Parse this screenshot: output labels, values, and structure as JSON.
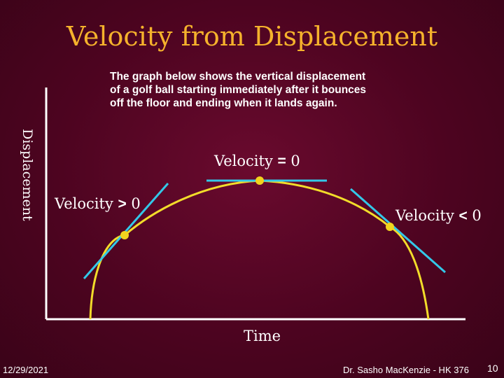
{
  "title": "Velocity from Displacement",
  "description": [
    "The graph below shows the vertical displacement",
    "of a golf ball starting immediately after it bounces",
    "off the floor and ending when it lands again."
  ],
  "axes": {
    "y_label": "Displacement",
    "x_label": "Time"
  },
  "annotations": {
    "zero": {
      "prefix": "Velocity ",
      "operator": "=",
      "suffix": " 0"
    },
    "positive": {
      "prefix": "Velocity ",
      "operator": ">",
      "suffix": " 0"
    },
    "negative": {
      "prefix": "Velocity ",
      "operator": "<",
      "suffix": " 0"
    }
  },
  "colors": {
    "title": "#f5b22c",
    "curve": "#f2dc2a",
    "tangent": "#33c8e8",
    "point": "#f2d31e",
    "axis": "#ffffff"
  },
  "footer": {
    "date": "12/29/2021",
    "author": "Dr. Sasho MacKenzie - HK 376",
    "page": "10"
  }
}
